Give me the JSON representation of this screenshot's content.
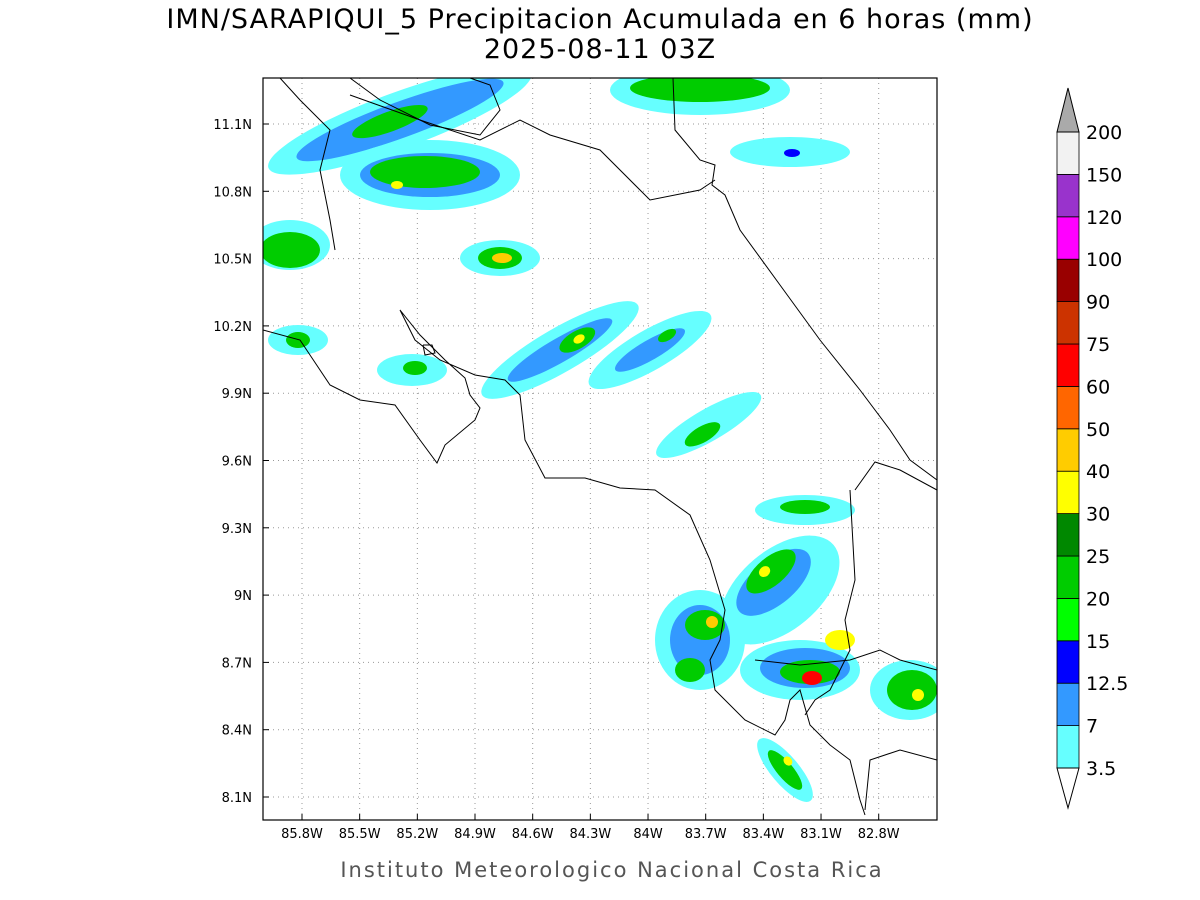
{
  "header": {
    "title": "IMN/SARAPIQUI_5 Precipitacion Acumulada en 6 horas (mm)",
    "subtitle": "2025-08-11 03Z"
  },
  "map": {
    "lon_labels": [
      "85.8W",
      "85.5W",
      "85.2W",
      "84.9W",
      "84.6W",
      "84.3W",
      "84W",
      "83.7W",
      "83.4W",
      "83.1W",
      "82.8W"
    ],
    "lat_labels": [
      "11.1N",
      "10.8N",
      "10.5N",
      "10.2N",
      "9.9N",
      "9.6N",
      "9.3N",
      "9N",
      "8.7N",
      "8.4N",
      "8.1N"
    ]
  },
  "colorbar": {
    "labels": [
      "3.5",
      "7",
      "12.5",
      "15",
      "20",
      "25",
      "30",
      "40",
      "50",
      "60",
      "75",
      "90",
      "100",
      "120",
      "150",
      "200"
    ],
    "colors": [
      "#66ffff",
      "#3399ff",
      "#0000ff",
      "#00ff00",
      "#00cc00",
      "#008800",
      "#ffff00",
      "#ffcc00",
      "#ff6600",
      "#ff0000",
      "#cc3300",
      "#990000",
      "#ff00ff",
      "#9933cc",
      "#f2f2f2"
    ],
    "over_color": "#aaaaaa",
    "under_color": "#ffffff"
  },
  "footer": "Instituto Meteorologico Nacional Costa Rica"
}
